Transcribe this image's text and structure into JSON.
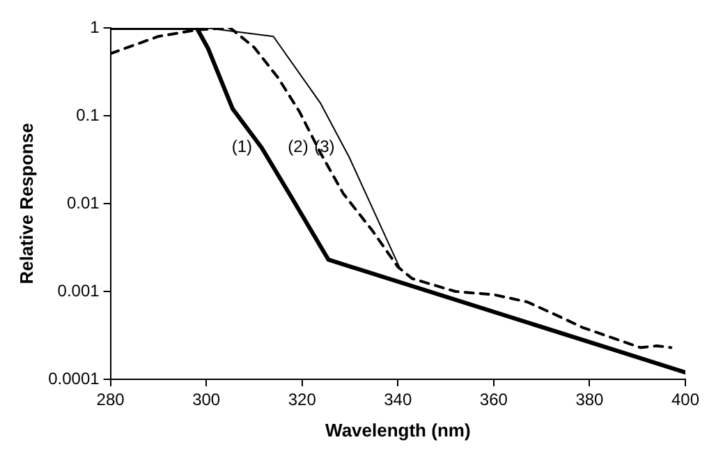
{
  "chart_data": {
    "type": "line",
    "xlabel": "Wavelength (nm)",
    "ylabel": "Relative Response",
    "log": "y",
    "grid": false,
    "legend": false,
    "marker": "none",
    "xlim": [
      280,
      400
    ],
    "xticks": [
      280,
      300,
      320,
      340,
      360,
      380,
      400
    ],
    "ylim": [
      0.0001,
      1
    ],
    "yticks": [
      0.0001,
      0.001,
      0.01,
      0.1,
      1
    ],
    "series": [
      {
        "color": "#000000",
        "line_style": "solid",
        "x": [
          280,
          298,
          300.4,
          305.5,
          311.6,
          317.7,
          325.5,
          400
        ],
        "values": [
          1,
          1,
          0.58,
          0.12,
          0.043,
          0.012,
          0.0023,
          0.00012
        ]
      },
      {
        "color": "#000000",
        "line_style": "dashed",
        "x": [
          280,
          290,
          298,
          305,
          310,
          315,
          319.5,
          323.8,
          328.6,
          334.7,
          340,
          343,
          352,
          360,
          367,
          374,
          378.5,
          383,
          390.6,
          394,
          397
        ],
        "values": [
          0.51,
          0.8,
          0.95,
          1,
          0.6,
          0.27,
          0.11,
          0.038,
          0.013,
          0.0049,
          0.0019,
          0.0014,
          0.001,
          0.00092,
          0.00076,
          0.00051,
          0.00039,
          0.00032,
          0.00023,
          0.00024,
          0.00023
        ]
      },
      {
        "color": "#000000",
        "line_style": "solid",
        "x": [
          280,
          300,
          314,
          323.8,
          329.8,
          340.5
        ],
        "values": [
          1,
          1,
          0.8,
          0.14,
          0.034,
          0.0018
        ]
      }
    ],
    "annotations": [
      "(1)",
      "(2)",
      "(3)"
    ]
  }
}
